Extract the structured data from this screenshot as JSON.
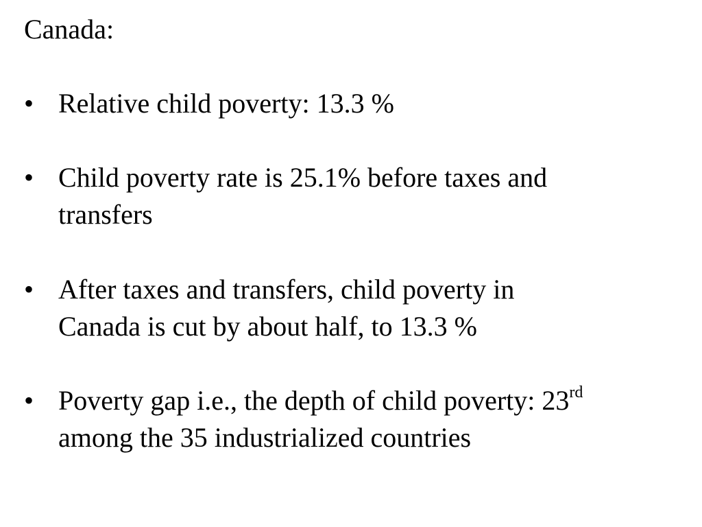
{
  "heading": "Canada:",
  "bullet_symbol": "•",
  "bullets": [
    {
      "lines": [
        "Relative child poverty:  13.3 %"
      ]
    },
    {
      "lines": [
        "Child poverty rate is 25.1% before taxes and",
        "transfers"
      ]
    },
    {
      "lines": [
        "After taxes and transfers, child poverty in",
        "Canada is cut by about half, to 13.3 %"
      ]
    },
    {
      "line1_main": "Poverty gap i.e., the depth of child poverty: 23",
      "line1_sup": "rd",
      "line2": "among the 35 industrialized countries"
    }
  ]
}
